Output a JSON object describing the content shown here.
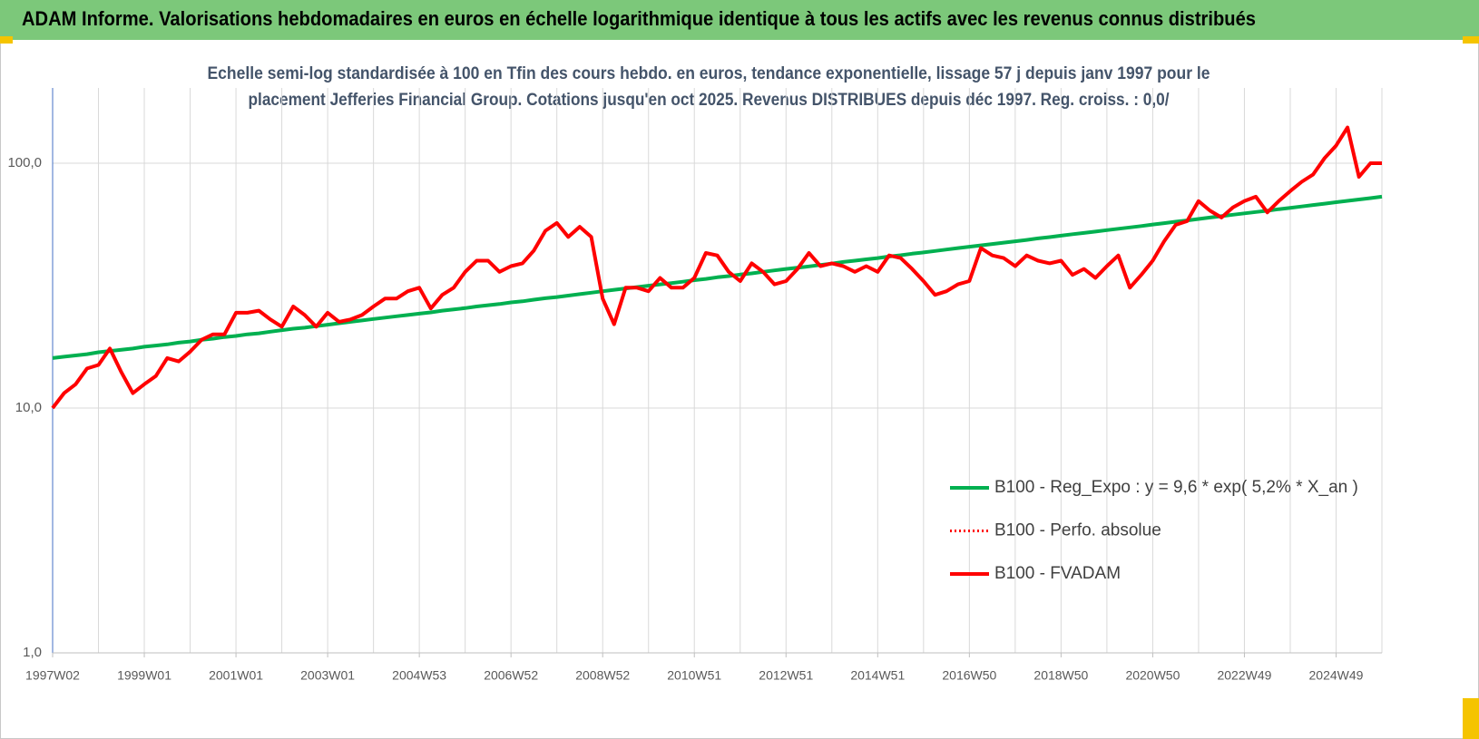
{
  "header": {
    "title": "ADAM Informe. Valorisations hebdomadaires en euros en échelle logarithmique identique à tous les actifs avec les revenus connus distribués"
  },
  "chart_data": {
    "type": "line",
    "subtitle": [
      "Echelle semi-log standardisée à 100 en Tfin des cours hebdo. en euros, tendance exponentielle, lissage 57 j depuis janv 1997 pour le",
      "placement Jefferies Financial Group. Cotations jusqu'en oct 2025. Revenus DISTRIBUES depuis déc 1997. Reg. croiss. : 0,0/"
    ],
    "log_scale": true,
    "grid": true,
    "legend": "right",
    "ylim": [
      1,
      203
    ],
    "yticks": [
      {
        "value": 1,
        "label": "1,0"
      },
      {
        "value": 10,
        "label": "10,0"
      },
      {
        "value": 100,
        "label": "100,0"
      }
    ],
    "categories": [
      "1997W02",
      null,
      null,
      null,
      null,
      null,
      null,
      null,
      "1999W01",
      null,
      null,
      null,
      null,
      null,
      null,
      null,
      "2001W01",
      null,
      null,
      null,
      null,
      null,
      null,
      null,
      "2003W01",
      null,
      null,
      null,
      null,
      null,
      null,
      null,
      "2004W53",
      null,
      null,
      null,
      null,
      null,
      null,
      null,
      "2006W52",
      null,
      null,
      null,
      null,
      null,
      null,
      null,
      "2008W52",
      null,
      null,
      null,
      null,
      null,
      null,
      null,
      "2010W51",
      null,
      null,
      null,
      null,
      null,
      null,
      null,
      "2012W51",
      null,
      null,
      null,
      null,
      null,
      null,
      null,
      "2014W51",
      null,
      null,
      null,
      null,
      null,
      null,
      null,
      "2016W50",
      null,
      null,
      null,
      null,
      null,
      null,
      null,
      "2018W50",
      null,
      null,
      null,
      null,
      null,
      null,
      null,
      "2020W50",
      null,
      null,
      null,
      null,
      null,
      null,
      null,
      "2022W49",
      null,
      null,
      null,
      null,
      null,
      null,
      null,
      "2024W49",
      null,
      null,
      null,
      null
    ],
    "series": [
      {
        "name": "B100 - Reg_Expo : y = 9,6 * exp( 5,2% *  X_an )",
        "color": "#00b050",
        "line_style": "solid",
        "values": [
          16.0,
          16.2,
          16.4,
          16.6,
          16.9,
          17.1,
          17.3,
          17.5,
          17.8,
          18.0,
          18.2,
          18.5,
          18.7,
          19.0,
          19.2,
          19.5,
          19.7,
          20.0,
          20.2,
          20.5,
          20.8,
          21.1,
          21.3,
          21.6,
          21.9,
          22.2,
          22.5,
          22.8,
          23.1,
          23.4,
          23.7,
          24.0,
          24.3,
          24.6,
          25.0,
          25.3,
          25.6,
          26.0,
          26.3,
          26.6,
          27.0,
          27.3,
          27.7,
          28.1,
          28.4,
          28.8,
          29.2,
          29.6,
          30.0,
          30.4,
          30.8,
          31.2,
          31.6,
          32.0,
          32.4,
          32.8,
          33.3,
          33.7,
          34.2,
          34.6,
          35.1,
          35.5,
          36.0,
          36.5,
          37.0,
          37.4,
          37.9,
          38.4,
          38.9,
          39.5,
          40.0,
          40.5,
          41.0,
          41.6,
          42.1,
          42.7,
          43.2,
          43.8,
          44.4,
          45.0,
          45.6,
          46.2,
          46.8,
          47.4,
          48.0,
          48.6,
          49.3,
          49.9,
          50.6,
          51.3,
          51.9,
          52.6,
          53.3,
          54.0,
          54.7,
          55.4,
          56.2,
          56.9,
          57.7,
          58.4,
          59.2,
          60.0,
          60.8,
          61.6,
          62.4,
          63.2,
          64.0,
          64.9,
          65.7,
          66.6,
          67.5,
          68.4,
          69.3,
          70.2,
          71.1,
          72.0,
          73.0
        ]
      },
      {
        "name": "B100 - Perfo. absolue",
        "color": "#ff0000",
        "line_style": "dotted",
        "values": [
          10,
          11.5,
          12.5,
          14.5,
          15,
          17.5,
          14,
          11.5,
          12.5,
          13.5,
          16,
          15.5,
          17,
          19,
          20,
          20,
          24.5,
          24.5,
          25,
          23,
          21.5,
          26,
          24,
          21.5,
          24.5,
          22.5,
          23,
          24,
          26,
          28,
          28,
          30,
          31,
          25.5,
          29,
          31,
          36,
          40,
          40,
          36,
          38,
          39,
          44,
          53,
          57,
          50,
          55,
          50,
          28,
          22,
          31,
          31,
          30,
          34,
          31,
          31,
          34,
          43,
          42,
          36,
          33,
          39,
          36,
          32,
          33,
          37,
          43,
          38,
          39,
          38,
          36,
          38,
          36,
          42,
          41,
          37,
          33,
          29,
          30,
          32,
          33,
          45,
          42,
          41,
          38,
          42,
          40,
          39,
          40,
          35,
          37,
          34,
          38,
          42,
          31,
          35,
          40,
          48,
          56,
          58,
          70,
          64,
          60,
          66,
          70,
          73,
          63,
          70,
          77,
          84,
          90,
          105,
          118,
          140,
          88,
          100,
          100
        ]
      },
      {
        "name": "B100 - FVADAM",
        "color": "#ff0000",
        "line_style": "solid",
        "values": [
          10,
          11.5,
          12.5,
          14.5,
          15,
          17.5,
          14,
          11.5,
          12.5,
          13.5,
          16,
          15.5,
          17,
          19,
          20,
          20,
          24.5,
          24.5,
          25,
          23,
          21.5,
          26,
          24,
          21.5,
          24.5,
          22.5,
          23,
          24,
          26,
          28,
          28,
          30,
          31,
          25.5,
          29,
          31,
          36,
          40,
          40,
          36,
          38,
          39,
          44,
          53,
          57,
          50,
          55,
          50,
          28,
          22,
          31,
          31,
          30,
          34,
          31,
          31,
          34,
          43,
          42,
          36,
          33,
          39,
          36,
          32,
          33,
          37,
          43,
          38,
          39,
          38,
          36,
          38,
          36,
          42,
          41,
          37,
          33,
          29,
          30,
          32,
          33,
          45,
          42,
          41,
          38,
          42,
          40,
          39,
          40,
          35,
          37,
          34,
          38,
          42,
          31,
          35,
          40,
          48,
          56,
          58,
          70,
          64,
          60,
          66,
          70,
          73,
          63,
          70,
          77,
          84,
          90,
          105,
          118,
          140,
          88,
          100,
          100
        ]
      }
    ]
  }
}
